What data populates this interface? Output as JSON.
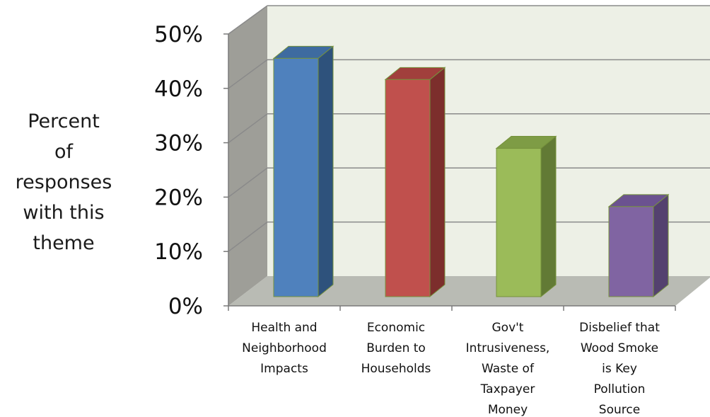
{
  "chart_data": {
    "type": "bar",
    "ylabel_lines": [
      "Percent",
      "of",
      "responses",
      "with this",
      "theme"
    ],
    "categories": [
      [
        "Health and",
        "Neighborhood",
        "Impacts"
      ],
      [
        "Economic",
        "Burden to",
        "Households"
      ],
      [
        "Gov't",
        "Intrusiveness,",
        "Waste of",
        "Taxpayer",
        "Money"
      ],
      [
        "Disbelief that",
        "Wood Smoke",
        "is Key",
        "Pollution",
        "Source"
      ]
    ],
    "values": [
      45,
      41,
      28,
      17
    ],
    "ylim": [
      0,
      50
    ],
    "yticks": [
      "0%",
      "10%",
      "20%",
      "30%",
      "40%",
      "50%"
    ],
    "grid": true,
    "legend": "none",
    "colors": {
      "bars": [
        {
          "front": "#4f81bd",
          "side": "#2e527c",
          "top": "#3e6ba0"
        },
        {
          "front": "#c0504d",
          "side": "#7c2e2c",
          "top": "#a13f3c"
        },
        {
          "front": "#9bbb59",
          "side": "#627a35",
          "top": "#7e9c45"
        },
        {
          "front": "#8064a2",
          "side": "#54416f",
          "top": "#6b5290"
        }
      ],
      "back_wall": "#edf0e6",
      "side_wall": "#9e9e98",
      "floor": "#b9bbb4",
      "grid": "#8a8a8a",
      "bar_outline": "#76923c"
    }
  }
}
